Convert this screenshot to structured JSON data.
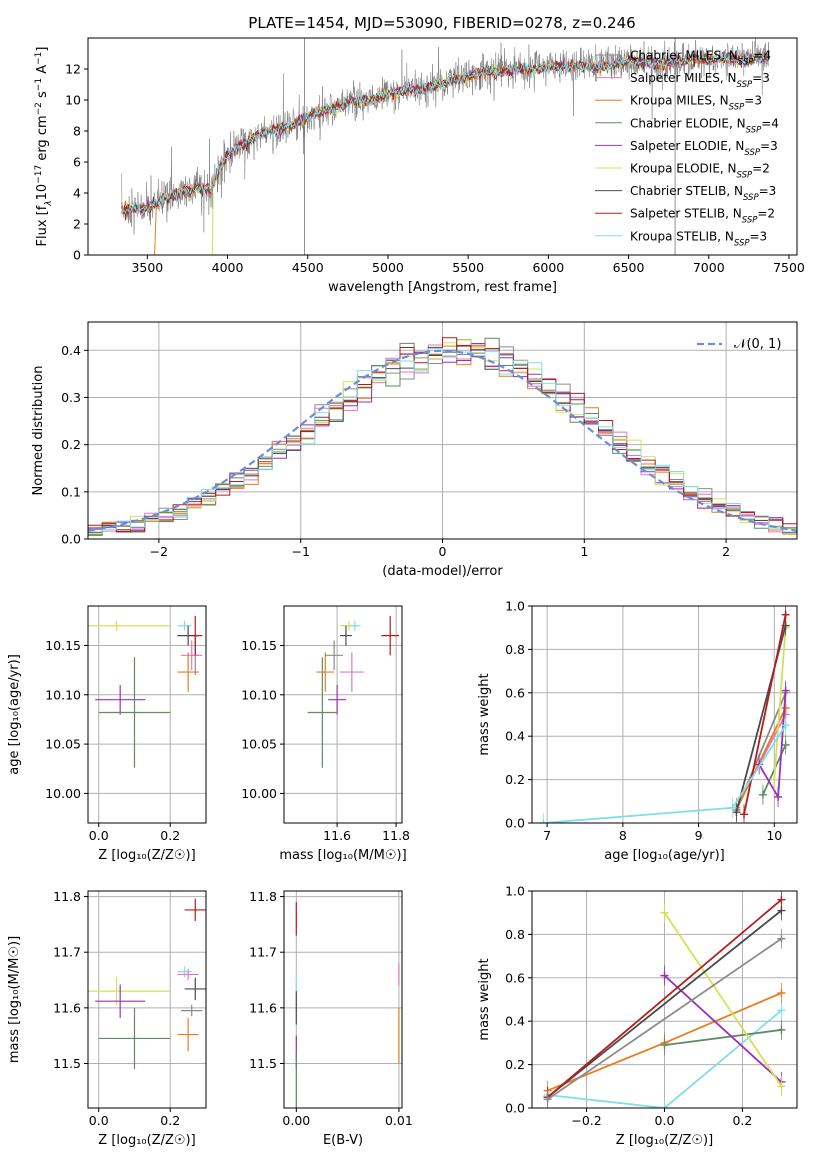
{
  "figure": {
    "title": "PLATE=1454, MJD=53090, FIBERID=0278, z=0.246"
  },
  "models": [
    {
      "label": "Chabrier MILES, N",
      "sub": "SSP",
      "tail": "=4",
      "color": "#8c8c8c"
    },
    {
      "label": "Salpeter MILES, N",
      "sub": "SSP",
      "tail": "=3",
      "color": "#e377c2"
    },
    {
      "label": "Kroupa MILES, N",
      "sub": "SSP",
      "tail": "=3",
      "color": "#e67e22"
    },
    {
      "label": "Chabrier ELODIE, N",
      "sub": "SSP",
      "tail": "=4",
      "color": "#5f8a64"
    },
    {
      "label": "Salpeter ELODIE, N",
      "sub": "SSP",
      "tail": "=3",
      "color": "#9b30b5"
    },
    {
      "label": "Kroupa ELODIE, N",
      "sub": "SSP",
      "tail": "=2",
      "color": "#d4e157"
    },
    {
      "label": "Chabrier STELIB, N",
      "sub": "SSP",
      "tail": "=3",
      "color": "#4a4a4a"
    },
    {
      "label": "Salpeter STELIB, N",
      "sub": "SSP",
      "tail": "=2",
      "color": "#b71c1c"
    },
    {
      "label": "Kroupa STELIB, N",
      "sub": "SSP",
      "tail": "=3",
      "color": "#80deea"
    }
  ],
  "chart_data": [
    {
      "id": "spectrum",
      "type": "line",
      "title": "PLATE=1454, MJD=53090, FIBERID=0278, z=0.246",
      "xlabel": "wavelength [Angstrom, rest frame]",
      "ylabel_parts": [
        "Flux [f",
        "λ",
        "10",
        "−17",
        " erg cm",
        "−2",
        " s",
        "−1",
        " A",
        "−1",
        "]"
      ],
      "xlim": [
        3130,
        7550
      ],
      "ylim": [
        0,
        14
      ],
      "xticks": [
        3500,
        4000,
        4500,
        5000,
        5500,
        6000,
        6500,
        7000,
        7500
      ],
      "yticks": [
        0,
        2,
        4,
        6,
        8,
        10,
        12
      ],
      "x": [
        3340,
        3500,
        3600,
        3700,
        3800,
        3900,
        3950,
        4000,
        4100,
        4200,
        4300,
        4400,
        4500,
        4600,
        4700,
        4800,
        4900,
        5000,
        5100,
        5200,
        5300,
        5400,
        5500,
        5600,
        5700,
        5800,
        5900,
        6000,
        6100,
        6200,
        6300,
        6400,
        6500,
        6600,
        6700,
        6800,
        6900,
        7000,
        7100,
        7200,
        7300,
        7380
      ],
      "y": [
        2.9,
        3.0,
        3.6,
        4.0,
        4.3,
        4.2,
        5.6,
        6.4,
        7.2,
        7.8,
        8.1,
        8.3,
        8.9,
        9.3,
        9.6,
        10.0,
        10.0,
        10.4,
        10.6,
        10.7,
        10.9,
        11.3,
        11.5,
        11.9,
        11.8,
        12.0,
        12.0,
        12.1,
        12.2,
        12.2,
        12.1,
        12.3,
        12.5,
        12.4,
        12.3,
        12.5,
        12.6,
        12.6,
        12.7,
        12.6,
        12.8,
        12.7
      ],
      "spike_lines": [
        4480,
        6790
      ]
    },
    {
      "id": "residuals",
      "type": "line",
      "xlabel": "(data-model)/error",
      "ylabel": "Normed distribution",
      "xlim": [
        -2.5,
        2.5
      ],
      "ylim": [
        0,
        0.46
      ],
      "xticks": [
        -2,
        -1,
        0,
        1,
        2
      ],
      "yticks": [
        0.0,
        0.1,
        0.2,
        0.3,
        0.4
      ],
      "legend": "𝒩(0, 1)",
      "bin_width": 0.1
    },
    {
      "id": "age_vs_Z",
      "type": "scatter",
      "xlabel": "Z [log₁₀(Z/Z☉)]",
      "ylabel": "age  [log₁₀(age/yr)]",
      "xlim": [
        -0.03,
        0.3
      ],
      "ylim": [
        9.97,
        10.19
      ],
      "xticks": [
        0.0,
        0.2
      ],
      "yticks": [
        10.0,
        10.05,
        10.1,
        10.15
      ],
      "points": [
        {
          "x": 0.05,
          "y": 10.17,
          "xerr": 0.15,
          "yerr": 0.005,
          "series": 5
        },
        {
          "x": 0.06,
          "y": 10.095,
          "xerr": 0.07,
          "yerr": 0.015,
          "series": 4
        },
        {
          "x": 0.1,
          "y": 10.082,
          "xerr": 0.1,
          "yerr": 0.056,
          "series": 3
        },
        {
          "x": 0.24,
          "y": 10.17,
          "xerr": 0.02,
          "yerr": 0.005,
          "series": 8
        },
        {
          "x": 0.25,
          "y": 10.16,
          "xerr": 0.03,
          "yerr": 0.01,
          "series": 6
        },
        {
          "x": 0.27,
          "y": 10.14,
          "xerr": 0.01,
          "yerr": 0.02,
          "series": 0
        },
        {
          "x": 0.26,
          "y": 10.14,
          "xerr": 0.03,
          "yerr": 0.015,
          "series": 1
        },
        {
          "x": 0.25,
          "y": 10.123,
          "xerr": 0.03,
          "yerr": 0.02,
          "series": 2
        },
        {
          "x": 0.27,
          "y": 10.16,
          "xerr": 0.02,
          "yerr": 0.02,
          "series": 7
        }
      ]
    },
    {
      "id": "age_vs_mass",
      "type": "scatter",
      "xlabel": "mass [log₁₀(M/M☉)]",
      "xlim": [
        11.42,
        11.82
      ],
      "ylim": [
        9.97,
        10.19
      ],
      "xticks": [
        11.6,
        11.8
      ],
      "yticks": [
        10.0,
        10.05,
        10.1,
        10.15
      ],
      "points": [
        {
          "x": 11.64,
          "y": 10.17,
          "xerr": 0.03,
          "yerr": 0.005,
          "series": 5
        },
        {
          "x": 11.6,
          "y": 10.095,
          "xerr": 0.03,
          "yerr": 0.015,
          "series": 4
        },
        {
          "x": 11.55,
          "y": 10.082,
          "xerr": 0.05,
          "yerr": 0.056,
          "series": 3
        },
        {
          "x": 11.66,
          "y": 10.17,
          "xerr": 0.02,
          "yerr": 0.005,
          "series": 8
        },
        {
          "x": 11.63,
          "y": 10.16,
          "xerr": 0.02,
          "yerr": 0.01,
          "series": 6
        },
        {
          "x": 11.65,
          "y": 10.123,
          "xerr": 0.04,
          "yerr": 0.02,
          "series": 1
        },
        {
          "x": 11.59,
          "y": 10.14,
          "xerr": 0.03,
          "yerr": 0.015,
          "series": 0
        },
        {
          "x": 11.56,
          "y": 10.123,
          "xerr": 0.03,
          "yerr": 0.02,
          "series": 2
        },
        {
          "x": 11.78,
          "y": 10.16,
          "xerr": 0.03,
          "yerr": 0.02,
          "series": 7
        }
      ]
    },
    {
      "id": "weight_vs_age",
      "type": "line",
      "ylabel": "mass weight",
      "xlabel": "age  [log₁₀(age/yr)]",
      "xlim": [
        6.8,
        10.3
      ],
      "ylim": [
        0,
        1.0
      ],
      "xticks": [
        7,
        8,
        9,
        10
      ],
      "yticks": [
        0.0,
        0.2,
        0.4,
        0.6,
        0.8,
        1.0
      ],
      "series": [
        {
          "model": 0,
          "x": [
            9.5,
            10.15
          ],
          "y": [
            0.06,
            0.6
          ]
        },
        {
          "model": 1,
          "x": [
            9.5,
            10.15
          ],
          "y": [
            0.07,
            0.5
          ]
        },
        {
          "model": 2,
          "x": [
            9.5,
            10.15
          ],
          "y": [
            0.06,
            0.53
          ]
        },
        {
          "model": 3,
          "x": [
            9.85,
            10.15
          ],
          "y": [
            0.13,
            0.36
          ]
        },
        {
          "model": 4,
          "x": [
            9.8,
            10.05,
            10.15
          ],
          "y": [
            0.27,
            0.12,
            0.61
          ]
        },
        {
          "model": 5,
          "x": [
            10.0,
            10.15
          ],
          "y": [
            0.2,
            0.9
          ]
        },
        {
          "model": 6,
          "x": [
            9.5,
            10.15
          ],
          "y": [
            0.05,
            0.91
          ]
        },
        {
          "model": 7,
          "x": [
            9.6,
            10.15
          ],
          "y": [
            0.04,
            0.96
          ]
        },
        {
          "model": 8,
          "x": [
            6.95,
            9.45,
            10.15
          ],
          "y": [
            0.0,
            0.07,
            0.45
          ]
        }
      ]
    },
    {
      "id": "mass_vs_Z",
      "type": "scatter",
      "xlabel": "Z [log₁₀(Z/Z☉)]",
      "ylabel": "mass [log₁₀(M/M☉)]",
      "xlim": [
        -0.03,
        0.3
      ],
      "ylim": [
        11.42,
        11.81
      ],
      "xticks": [
        0.0,
        0.2
      ],
      "yticks": [
        11.5,
        11.6,
        11.7,
        11.8
      ],
      "points": [
        {
          "x": 0.05,
          "y": 11.63,
          "xerr": 0.15,
          "yerr": 0.025,
          "series": 5
        },
        {
          "x": 0.06,
          "y": 11.612,
          "xerr": 0.07,
          "yerr": 0.03,
          "series": 4
        },
        {
          "x": 0.1,
          "y": 11.545,
          "xerr": 0.1,
          "yerr": 0.055,
          "series": 3
        },
        {
          "x": 0.24,
          "y": 11.665,
          "xerr": 0.02,
          "yerr": 0.01,
          "series": 8
        },
        {
          "x": 0.25,
          "y": 11.66,
          "xerr": 0.03,
          "yerr": 0.01,
          "series": 1
        },
        {
          "x": 0.27,
          "y": 11.634,
          "xerr": 0.03,
          "yerr": 0.02,
          "series": 6
        },
        {
          "x": 0.26,
          "y": 11.595,
          "xerr": 0.03,
          "yerr": 0.01,
          "series": 0
        },
        {
          "x": 0.25,
          "y": 11.552,
          "xerr": 0.03,
          "yerr": 0.03,
          "series": 2
        },
        {
          "x": 0.27,
          "y": 11.776,
          "xerr": 0.03,
          "yerr": 0.02,
          "series": 7
        }
      ]
    },
    {
      "id": "mass_vs_ebv",
      "type": "scatter",
      "xlabel": "E(B-V)",
      "xlim": [
        -0.0012,
        0.0103
      ],
      "ylim": [
        11.42,
        11.81
      ],
      "xticks": [
        0.0,
        0.01
      ],
      "yticks": [
        11.5,
        11.6,
        11.7,
        11.8
      ],
      "points": [
        {
          "x": 0.0,
          "y": 11.76,
          "yerr": 0.03,
          "series": 7
        },
        {
          "x": 0.0,
          "y": 11.64,
          "yerr": 0.02,
          "series": 8
        },
        {
          "x": 0.0,
          "y": 11.6,
          "yerr": 0.03,
          "series": 6
        },
        {
          "x": 0.0,
          "y": 11.52,
          "yerr": 0.03,
          "series": 4
        },
        {
          "x": 0.0,
          "y": 11.47,
          "yerr": 0.05,
          "series": 3
        },
        {
          "x": 0.01,
          "y": 11.66,
          "yerr": 0.02,
          "series": 1
        },
        {
          "x": 0.01,
          "y": 11.55,
          "yerr": 0.05,
          "series": 2
        }
      ]
    },
    {
      "id": "weight_vs_Z",
      "type": "line",
      "ylabel": "mass weight",
      "xlabel": "Z [log₁₀(Z/Z☉)]",
      "xlim": [
        -0.34,
        0.34
      ],
      "ylim": [
        0,
        1.0
      ],
      "xticks": [
        -0.2,
        0.0,
        0.2
      ],
      "yticks": [
        0.0,
        0.2,
        0.4,
        0.6,
        0.8,
        1.0
      ],
      "series": [
        {
          "model": 8,
          "x": [
            -0.3,
            0.0,
            0.3
          ],
          "y": [
            0.06,
            0.0,
            0.45
          ]
        },
        {
          "model": 2,
          "x": [
            -0.3,
            0.0,
            0.3
          ],
          "y": [
            0.08,
            0.3,
            0.53
          ]
        },
        {
          "model": 3,
          "x": [
            0.0,
            0.3
          ],
          "y": [
            0.29,
            0.36
          ]
        },
        {
          "model": 4,
          "x": [
            0.0,
            0.3
          ],
          "y": [
            0.61,
            0.12
          ]
        },
        {
          "model": 5,
          "x": [
            0.0,
            0.3
          ],
          "y": [
            0.9,
            0.1
          ]
        },
        {
          "model": 6,
          "x": [
            -0.3,
            0.3
          ],
          "y": [
            0.05,
            0.91
          ]
        },
        {
          "model": 7,
          "x": [
            -0.3,
            0.3
          ],
          "y": [
            0.05,
            0.96
          ]
        },
        {
          "model": 0,
          "x": [
            -0.3,
            0.3
          ],
          "y": [
            0.04,
            0.78
          ]
        }
      ]
    }
  ]
}
